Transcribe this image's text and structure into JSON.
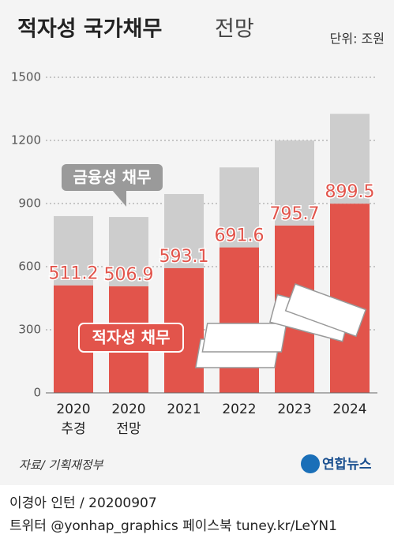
{
  "chart_data": {
    "type": "stacked_bar",
    "title": "적자성 국가채무",
    "subtitle": "전망",
    "unit": "단위: 조원",
    "categories": [
      "2020\n추경",
      "2020\n전망",
      "2021",
      "2022",
      "2023",
      "2024"
    ],
    "series": [
      {
        "name": "적자성 채무",
        "color": "#e2544b",
        "values": [
          511.2,
          506.9,
          593.1,
          691.6,
          795.7,
          899.5
        ]
      },
      {
        "name": "금융성 채무",
        "color": "#cdcdcd",
        "values": [
          329,
          329,
          352,
          380,
          404,
          427
        ]
      }
    ],
    "ylim": [
      0,
      1500
    ],
    "yticks": [
      0,
      300,
      600,
      900,
      1200,
      1500
    ],
    "grid": true,
    "source": "자료/ 기획재정부",
    "logo": "연합뉴스",
    "credit": "이경아 인턴 / 20200907",
    "social": "트위터 @yonhap_graphics  페이스북 tuney.kr/LeYN1"
  }
}
